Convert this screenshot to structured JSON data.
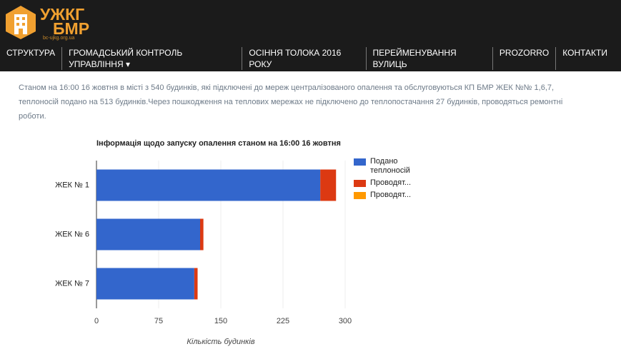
{
  "header": {
    "logo_line1": "УЖКГ",
    "logo_line2": "БМР",
    "domain": "bc-ujkg.org.ua"
  },
  "nav": [
    "СТРУКТУРА",
    "ГРОМАДСЬКИЙ КОНТРОЛЬ УПРАВЛІННЯ ▾",
    "ОСІННЯ ТОЛОКА 2016 РОКУ",
    "ПЕРЕЙМЕНУВАННЯ ВУЛИЦЬ",
    "PROZORRO",
    "КОНТАКТИ"
  ],
  "text": "Станом на 16:00 16 жовтня в місті з 540 будинків, які підключені до мереж централізованого опалення та обслуговуються КП БМР ЖЕК №№ 1,6,7, теплоносій подано на 513 будинків.Через пошкодження на теплових мережах не підключено до теплопостачання 27 будинків, проводяться ремонтні роботи.",
  "chart_data": {
    "type": "stacked-bar-horizontal",
    "title": "Інформація щодо запуску опалення станом на 16:00 16 жовтня",
    "x_label": "Кількість будинків",
    "categories": [
      "ЖЕК № 1",
      "ЖЕК № 6",
      "ЖЕК № 7"
    ],
    "series": [
      {
        "name": "Подано теплоносій",
        "color": "#3366cc",
        "values": [
          270,
          125,
          118
        ]
      },
      {
        "name": "Проводят...",
        "color": "#dc3912",
        "values": [
          19,
          4,
          4
        ]
      },
      {
        "name": "Проводят...",
        "color": "#ff9900",
        "values": [
          0,
          0,
          0
        ]
      }
    ],
    "xlim": [
      0,
      300
    ],
    "xticks": [
      0,
      75,
      150,
      225,
      300
    ],
    "grid": true,
    "legend": "right"
  }
}
